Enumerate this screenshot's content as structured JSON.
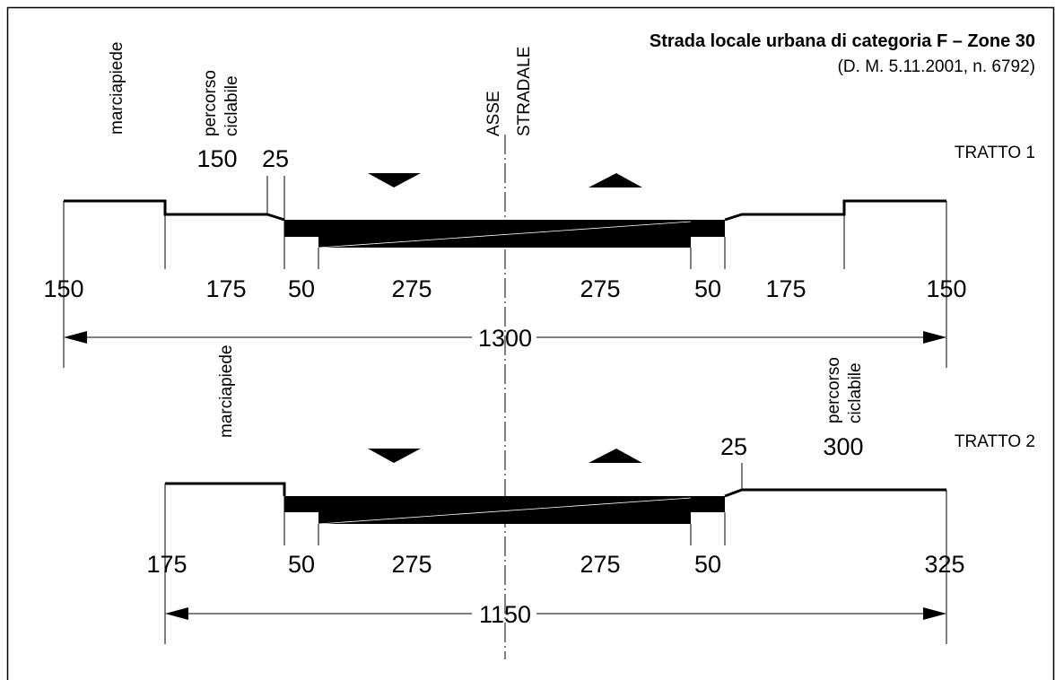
{
  "title": "Strada locale urbana di categoria F – Zone 30",
  "subtitle": "(D. M. 5.11.2001, n. 6792)",
  "axis_label": [
    "ASSE",
    "STRADALE"
  ],
  "tratto1": {
    "label": "TRATTO 1",
    "side_labels": {
      "marciapiede": "marciapiede",
      "percorso": [
        "percorso",
        "ciclabile"
      ]
    },
    "top_dims": {
      "bike": "150",
      "kerb": "25"
    },
    "bottom_dims": [
      "150",
      "175",
      "50",
      "275",
      "275",
      "50",
      "175",
      "150"
    ],
    "total": "1300"
  },
  "tratto2": {
    "label": "TRATTO 2",
    "side_labels": {
      "marciapiede": "marciapiede",
      "percorso": [
        "percorso",
        "ciclabile"
      ]
    },
    "top_dims": {
      "kerb": "25",
      "bike": "300"
    },
    "bottom_dims": [
      "175",
      "50",
      "275",
      "275",
      "50",
      "325"
    ],
    "total": "1150"
  },
  "colors": {
    "line": "#000000",
    "background": "#ffffff"
  }
}
